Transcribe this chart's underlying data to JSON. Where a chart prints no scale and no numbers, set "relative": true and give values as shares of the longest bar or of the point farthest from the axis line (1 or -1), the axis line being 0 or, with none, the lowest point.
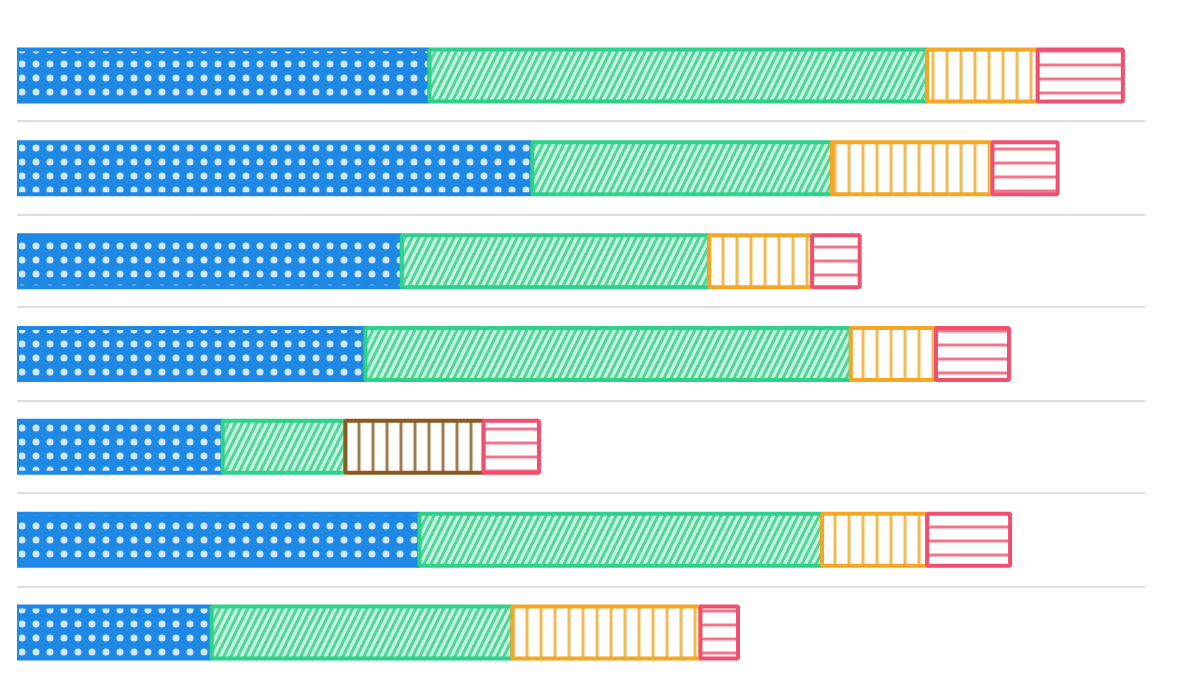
{
  "chart_data": {
    "type": "bar",
    "orientation": "horizontal",
    "stacked": true,
    "relative": true,
    "grid": "y",
    "categories": [
      null,
      null,
      null,
      null,
      null,
      null,
      null
    ],
    "series": [
      {
        "color": "#1e88e5",
        "values": [
          0.373,
          0.466,
          0.348,
          0.315,
          0.186,
          0.364,
          0.176
        ]
      },
      {
        "color": "#2ed18a",
        "values": [
          0.45,
          0.271,
          0.278,
          0.439,
          0.111,
          0.364,
          0.272
        ]
      },
      {
        "colors": [
          "#f5a623",
          "#f5a623",
          "#f5a623",
          "#f5a623",
          "#8b5a1e",
          "#f5a623",
          "#f5a623"
        ],
        "values": [
          0.1,
          0.145,
          0.093,
          0.077,
          0.125,
          0.095,
          0.17
        ]
      },
      {
        "color": "#f0506e",
        "values": [
          0.077,
          0.059,
          0.043,
          0.066,
          0.05,
          0.075,
          0.034
        ]
      }
    ]
  }
}
